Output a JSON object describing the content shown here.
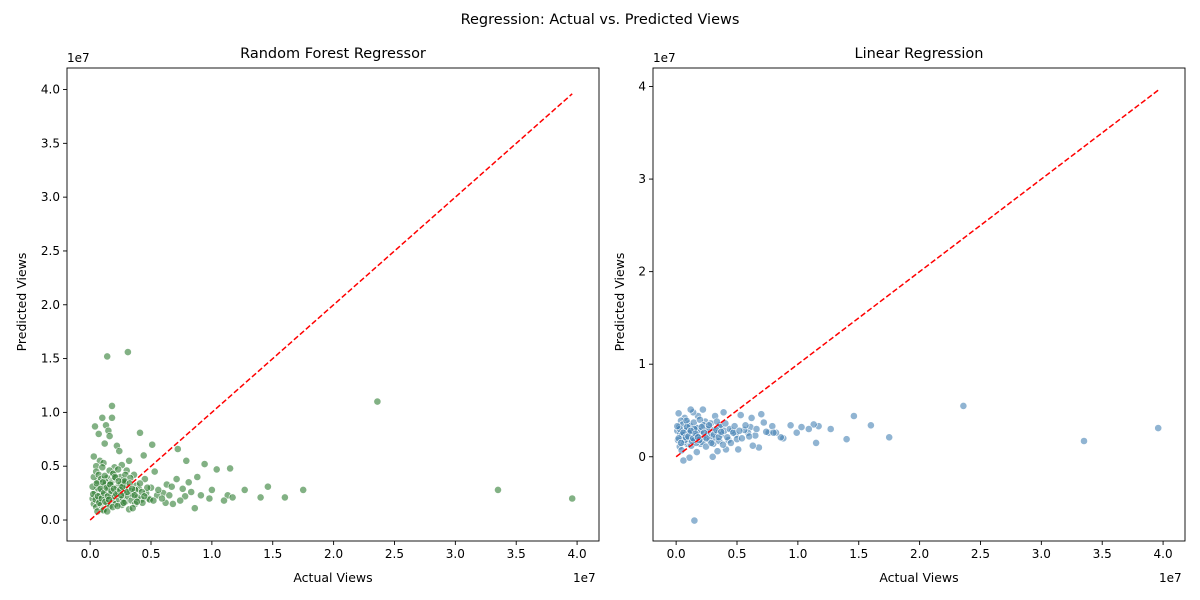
{
  "figure": {
    "suptitle": "Regression: Actual vs. Predicted Views"
  },
  "chart_data": [
    {
      "type": "scatter",
      "title": "Random Forest Regressor",
      "xlabel": "Actual Views",
      "ylabel": "Predicted Views",
      "x_offset_label": "1e7",
      "y_offset_label": "1e7",
      "xlim": [
        -1.9,
        41.8
      ],
      "ylim": [
        -1.95,
        42.0
      ],
      "xticks": [
        0,
        5,
        10,
        15,
        20,
        25,
        30,
        35,
        40
      ],
      "xtick_labels": [
        "0.0",
        "0.5",
        "1.0",
        "1.5",
        "2.0",
        "2.5",
        "3.0",
        "3.5",
        "4.0"
      ],
      "yticks": [
        0,
        5,
        10,
        15,
        20,
        25,
        30,
        35,
        40
      ],
      "ytick_labels": [
        "0.0",
        "0.5",
        "1.0",
        "1.5",
        "2.0",
        "2.5",
        "3.0",
        "3.5",
        "4.0"
      ],
      "point_color": "#2e7d32",
      "reference_line": {
        "from": [
          0,
          0
        ],
        "to": [
          39.6,
          39.6
        ],
        "color": "#ff0000",
        "style": "dashed"
      },
      "grid": false,
      "points": [
        [
          1.4,
          15.2
        ],
        [
          3.1,
          15.6
        ],
        [
          1.8,
          10.6
        ],
        [
          23.6,
          11.0
        ],
        [
          0.4,
          8.7
        ],
        [
          1.3,
          8.8
        ],
        [
          1.5,
          8.3
        ],
        [
          0.7,
          8.0
        ],
        [
          1.6,
          7.8
        ],
        [
          1.0,
          9.5
        ],
        [
          1.8,
          9.5
        ],
        [
          4.1,
          8.1
        ],
        [
          1.2,
          7.1
        ],
        [
          2.2,
          6.9
        ],
        [
          2.4,
          6.4
        ],
        [
          5.1,
          7.0
        ],
        [
          7.2,
          6.6
        ],
        [
          0.3,
          5.9
        ],
        [
          4.4,
          6.0
        ],
        [
          0.8,
          5.5
        ],
        [
          1.1,
          5.3
        ],
        [
          3.2,
          5.5
        ],
        [
          7.9,
          5.5
        ],
        [
          9.4,
          5.2
        ],
        [
          0.5,
          5.0
        ],
        [
          2.0,
          4.9
        ],
        [
          2.6,
          5.1
        ],
        [
          5.3,
          4.5
        ],
        [
          10.4,
          4.7
        ],
        [
          11.5,
          4.8
        ],
        [
          3.0,
          4.6
        ],
        [
          3.6,
          4.2
        ],
        [
          1.9,
          4.4
        ],
        [
          7.1,
          3.8
        ],
        [
          8.1,
          3.5
        ],
        [
          8.8,
          4.0
        ],
        [
          6.3,
          3.3
        ],
        [
          4.5,
          3.8
        ],
        [
          3.8,
          3.2
        ],
        [
          1.4,
          3.9
        ],
        [
          0.6,
          3.6
        ],
        [
          2.8,
          3.4
        ],
        [
          14.6,
          3.1
        ],
        [
          17.5,
          2.8
        ],
        [
          12.7,
          2.8
        ],
        [
          10.0,
          2.8
        ],
        [
          33.5,
          2.8
        ],
        [
          6.0,
          2.5
        ],
        [
          7.6,
          2.9
        ],
        [
          5.0,
          3.0
        ],
        [
          11.3,
          2.3
        ],
        [
          14.0,
          2.1
        ],
        [
          16.0,
          2.1
        ],
        [
          39.6,
          2.0
        ],
        [
          11.0,
          1.8
        ],
        [
          11.7,
          2.1
        ],
        [
          7.8,
          2.2
        ],
        [
          6.2,
          1.6
        ],
        [
          6.8,
          1.5
        ],
        [
          8.6,
          1.1
        ],
        [
          4.8,
          2.0
        ],
        [
          5.5,
          2.3
        ],
        [
          4.2,
          1.9
        ],
        [
          0.2,
          2.0
        ],
        [
          0.3,
          1.5
        ],
        [
          0.4,
          2.6
        ],
        [
          0.5,
          1.2
        ],
        [
          0.6,
          3.0
        ],
        [
          0.7,
          1.8
        ],
        [
          0.8,
          2.3
        ],
        [
          0.9,
          1.4
        ],
        [
          1.0,
          2.7
        ],
        [
          1.1,
          1.0
        ],
        [
          1.2,
          3.2
        ],
        [
          1.3,
          2.1
        ],
        [
          1.4,
          1.6
        ],
        [
          1.5,
          2.9
        ],
        [
          1.6,
          1.3
        ],
        [
          1.7,
          2.4
        ],
        [
          1.8,
          3.6
        ],
        [
          1.9,
          1.8
        ],
        [
          2.0,
          2.2
        ],
        [
          2.1,
          1.5
        ],
        [
          2.2,
          3.0
        ],
        [
          2.3,
          2.6
        ],
        [
          2.4,
          1.9
        ],
        [
          2.5,
          3.3
        ],
        [
          2.6,
          1.4
        ],
        [
          2.7,
          2.0
        ],
        [
          2.8,
          2.5
        ],
        [
          2.9,
          1.7
        ],
        [
          3.0,
          3.1
        ],
        [
          3.1,
          2.2
        ],
        [
          3.2,
          1.0
        ],
        [
          3.3,
          2.7
        ],
        [
          3.4,
          1.8
        ],
        [
          3.5,
          2.4
        ],
        [
          3.7,
          1.5
        ],
        [
          3.9,
          2.1
        ],
        [
          4.0,
          2.9
        ],
        [
          4.3,
          1.6
        ],
        [
          4.6,
          2.5
        ],
        [
          4.9,
          1.9
        ],
        [
          0.2,
          3.1
        ],
        [
          0.3,
          4.0
        ],
        [
          0.5,
          4.5
        ],
        [
          0.6,
          0.8
        ],
        [
          0.7,
          4.2
        ],
        [
          0.9,
          3.8
        ],
        [
          1.0,
          4.9
        ],
        [
          1.1,
          0.9
        ],
        [
          1.2,
          4.1
        ],
        [
          1.3,
          3.5
        ],
        [
          1.4,
          0.8
        ],
        [
          1.6,
          4.6
        ],
        [
          1.7,
          3.4
        ],
        [
          1.9,
          4.3
        ],
        [
          2.1,
          3.9
        ],
        [
          2.3,
          4.7
        ],
        [
          2.5,
          4.0
        ],
        [
          2.7,
          3.7
        ],
        [
          2.9,
          4.2
        ],
        [
          3.3,
          3.9
        ],
        [
          3.5,
          1.1
        ],
        [
          3.7,
          2.8
        ],
        [
          4.1,
          3.4
        ],
        [
          4.7,
          3.0
        ],
        [
          0.25,
          2.4
        ],
        [
          0.45,
          1.9
        ],
        [
          0.55,
          3.4
        ],
        [
          0.65,
          2.2
        ],
        [
          0.75,
          1.6
        ],
        [
          0.85,
          2.9
        ],
        [
          0.95,
          2.0
        ],
        [
          1.05,
          3.5
        ],
        [
          1.15,
          2.5
        ],
        [
          1.25,
          1.7
        ],
        [
          1.35,
          3.0
        ],
        [
          1.45,
          2.2
        ],
        [
          1.55,
          1.9
        ],
        [
          1.65,
          3.3
        ],
        [
          1.75,
          2.7
        ],
        [
          1.85,
          1.2
        ],
        [
          1.95,
          2.9
        ],
        [
          2.05,
          4.0
        ],
        [
          2.15,
          2.4
        ],
        [
          2.25,
          1.3
        ],
        [
          2.35,
          3.6
        ],
        [
          2.45,
          2.8
        ],
        [
          2.55,
          2.3
        ],
        [
          2.65,
          3.1
        ],
        [
          2.75,
          1.6
        ],
        [
          2.85,
          3.6
        ],
        [
          3.05,
          2.6
        ],
        [
          3.25,
          3.4
        ],
        [
          3.45,
          2.9
        ],
        [
          3.65,
          2.3
        ],
        [
          3.85,
          1.7
        ],
        [
          4.25,
          2.6
        ],
        [
          4.45,
          2.2
        ],
        [
          5.2,
          1.8
        ],
        [
          5.6,
          2.8
        ],
        [
          5.9,
          2.0
        ],
        [
          6.5,
          2.3
        ],
        [
          6.7,
          3.1
        ],
        [
          7.4,
          1.8
        ],
        [
          8.3,
          2.6
        ],
        [
          9.1,
          2.3
        ],
        [
          9.8,
          2.0
        ]
      ]
    },
    {
      "type": "scatter",
      "title": "Linear Regression",
      "xlabel": "Actual Views",
      "ylabel": "Predicted Views",
      "x_offset_label": "1e7",
      "y_offset_label": "1e7",
      "xlim": [
        -1.9,
        41.8
      ],
      "ylim": [
        -9.1,
        42.0
      ],
      "xticks": [
        0,
        5,
        10,
        15,
        20,
        25,
        30,
        35,
        40
      ],
      "xtick_labels": [
        "0.0",
        "0.5",
        "1.0",
        "1.5",
        "2.0",
        "2.5",
        "3.0",
        "3.5",
        "4.0"
      ],
      "yticks": [
        0,
        10,
        20,
        30,
        40
      ],
      "ytick_labels": [
        "0",
        "1",
        "2",
        "3",
        "4"
      ],
      "point_color": "#4682b4",
      "reference_line": {
        "from": [
          0,
          0
        ],
        "to": [
          39.6,
          39.6
        ],
        "color": "#ff0000",
        "style": "dashed"
      },
      "grid": false,
      "points": [
        [
          1.5,
          -6.9
        ],
        [
          23.6,
          5.5
        ],
        [
          39.6,
          3.1
        ],
        [
          33.5,
          1.7
        ],
        [
          17.5,
          2.1
        ],
        [
          16.0,
          3.4
        ],
        [
          14.6,
          4.4
        ],
        [
          14.0,
          1.9
        ],
        [
          12.7,
          3.0
        ],
        [
          11.7,
          3.3
        ],
        [
          11.5,
          1.5
        ],
        [
          11.3,
          3.5
        ],
        [
          10.9,
          3.0
        ],
        [
          10.3,
          3.2
        ],
        [
          9.9,
          2.6
        ],
        [
          9.4,
          3.4
        ],
        [
          8.8,
          2.0
        ],
        [
          8.6,
          2.1
        ],
        [
          8.2,
          2.6
        ],
        [
          7.9,
          3.3
        ],
        [
          7.6,
          2.6
        ],
        [
          7.2,
          3.7
        ],
        [
          7.0,
          4.6
        ],
        [
          6.8,
          1.0
        ],
        [
          6.5,
          2.3
        ],
        [
          6.2,
          4.2
        ],
        [
          6.1,
          3.2
        ],
        [
          5.9,
          2.6
        ],
        [
          5.6,
          2.9
        ],
        [
          5.3,
          4.5
        ],
        [
          5.1,
          0.8
        ],
        [
          4.9,
          2.4
        ],
        [
          4.6,
          2.8
        ],
        [
          4.3,
          1.8
        ],
        [
          4.1,
          0.8
        ],
        [
          3.9,
          4.8
        ],
        [
          3.6,
          3.4
        ],
        [
          3.4,
          0.6
        ],
        [
          3.2,
          4.4
        ],
        [
          3.0,
          0.0
        ],
        [
          2.8,
          3.0
        ],
        [
          2.6,
          2.3
        ],
        [
          2.4,
          3.8
        ],
        [
          2.2,
          5.1
        ],
        [
          2.0,
          1.4
        ],
        [
          1.9,
          2.6
        ],
        [
          1.8,
          4.4
        ],
        [
          1.7,
          0.5
        ],
        [
          1.6,
          3.1
        ],
        [
          1.5,
          1.9
        ],
        [
          1.4,
          4.8
        ],
        [
          1.3,
          2.3
        ],
        [
          1.2,
          5.1
        ],
        [
          1.1,
          -0.1
        ],
        [
          1.0,
          3.6
        ],
        [
          0.9,
          1.4
        ],
        [
          0.8,
          2.9
        ],
        [
          0.7,
          4.2
        ],
        [
          0.6,
          -0.4
        ],
        [
          0.5,
          2.1
        ],
        [
          0.4,
          3.9
        ],
        [
          0.3,
          1.1
        ],
        [
          0.2,
          4.7
        ],
        [
          0.1,
          2.8
        ],
        [
          0.15,
          1.8
        ],
        [
          0.25,
          3.2
        ],
        [
          0.35,
          2.5
        ],
        [
          0.45,
          0.7
        ],
        [
          0.55,
          3.5
        ],
        [
          0.65,
          1.6
        ],
        [
          0.75,
          2.8
        ],
        [
          0.85,
          3.9
        ],
        [
          0.95,
          1.9
        ],
        [
          1.05,
          2.6
        ],
        [
          1.15,
          3.3
        ],
        [
          1.25,
          1.2
        ],
        [
          1.35,
          2.0
        ],
        [
          1.45,
          3.7
        ],
        [
          1.55,
          2.4
        ],
        [
          1.65,
          1.5
        ],
        [
          1.75,
          3.1
        ],
        [
          1.85,
          2.2
        ],
        [
          1.95,
          4.0
        ],
        [
          2.05,
          2.8
        ],
        [
          2.15,
          1.6
        ],
        [
          2.25,
          3.4
        ],
        [
          2.35,
          2.1
        ],
        [
          2.45,
          1.1
        ],
        [
          2.55,
          3.0
        ],
        [
          2.65,
          2.5
        ],
        [
          2.75,
          1.8
        ],
        [
          2.85,
          3.6
        ],
        [
          2.95,
          2.2
        ],
        [
          3.05,
          1.4
        ],
        [
          3.15,
          2.9
        ],
        [
          3.25,
          2.0
        ],
        [
          3.35,
          3.8
        ],
        [
          3.45,
          2.6
        ],
        [
          3.55,
          1.7
        ],
        [
          3.65,
          3.2
        ],
        [
          3.75,
          2.4
        ],
        [
          3.85,
          1.3
        ],
        [
          3.95,
          2.8
        ],
        [
          4.05,
          3.6
        ],
        [
          4.2,
          2.1
        ],
        [
          4.4,
          3.0
        ],
        [
          4.5,
          1.5
        ],
        [
          4.7,
          2.6
        ],
        [
          4.8,
          3.3
        ],
        [
          5.0,
          1.9
        ],
        [
          5.2,
          2.8
        ],
        [
          5.4,
          2.0
        ],
        [
          5.7,
          3.4
        ],
        [
          6.0,
          2.2
        ],
        [
          6.3,
          1.2
        ],
        [
          6.6,
          3.0
        ],
        [
          7.4,
          2.7
        ],
        [
          8.0,
          2.6
        ],
        [
          0.3,
          3.0
        ],
        [
          0.5,
          2.4
        ],
        [
          0.7,
          1.8
        ],
        [
          0.9,
          3.2
        ],
        [
          1.1,
          2.6
        ],
        [
          1.3,
          1.7
        ],
        [
          1.5,
          3.0
        ],
        [
          1.7,
          2.3
        ],
        [
          1.9,
          1.8
        ],
        [
          2.1,
          3.2
        ],
        [
          2.3,
          2.6
        ],
        [
          2.5,
          2.0
        ],
        [
          2.7,
          3.4
        ],
        [
          2.9,
          1.5
        ],
        [
          3.1,
          2.4
        ],
        [
          3.3,
          2.9
        ],
        [
          3.5,
          2.1
        ],
        [
          3.7,
          2.7
        ],
        [
          0.1,
          3.3
        ],
        [
          0.2,
          2.0
        ],
        [
          0.4,
          1.5
        ],
        [
          0.6,
          2.6
        ],
        [
          0.8,
          2.1
        ],
        [
          1.0,
          2.2
        ],
        [
          1.2,
          2.8
        ],
        [
          1.4,
          2.0
        ],
        [
          1.6,
          2.5
        ],
        [
          1.8,
          2.1
        ]
      ]
    }
  ]
}
